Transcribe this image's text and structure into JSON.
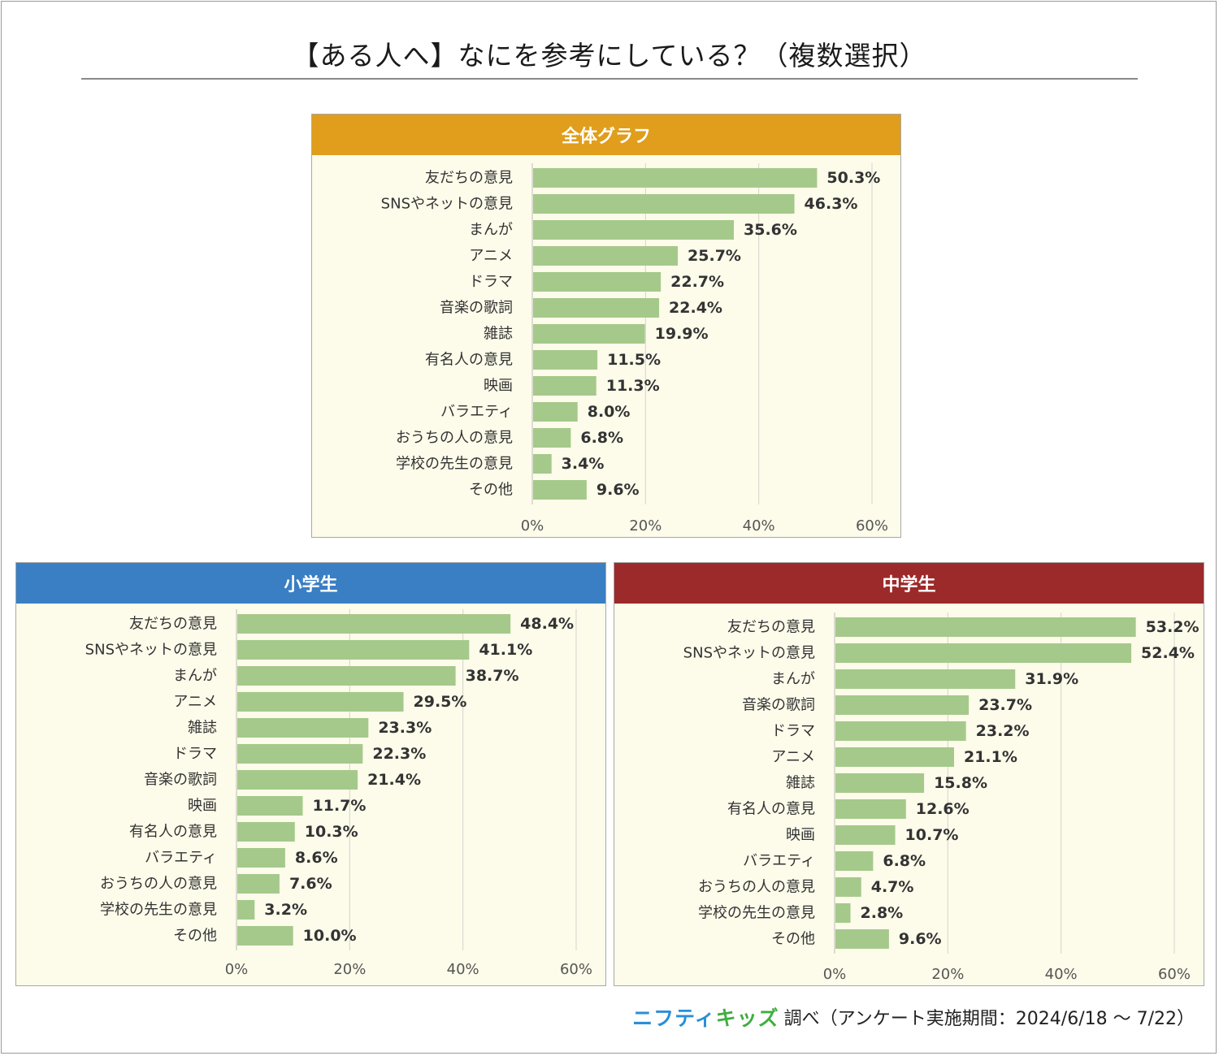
{
  "title": "【ある人へ】なにを参考にしている？（複数選択）",
  "footer": {
    "brand_part1": "ニフティ",
    "brand_part2": "キッズ",
    "note": "調べ（アンケート実施期間：2024/6/18 ～ 7/22）"
  },
  "colors": {
    "bar": "#a5c98b",
    "overall_header": "#e09e1c",
    "elementary_header": "#3a7fc4",
    "junior_header": "#9c2a2a",
    "plot_background": "#fdfbea"
  },
  "chart_data": [
    {
      "type": "bar",
      "orientation": "horizontal",
      "title": "全体グラフ",
      "categories": [
        "友だちの意見",
        "SNSやネットの意見",
        "まんが",
        "アニメ",
        "ドラマ",
        "音楽の歌詞",
        "雑誌",
        "有名人の意見",
        "映画",
        "バラエティ",
        "おうちの人の意見",
        "学校の先生の意見",
        "その他"
      ],
      "values": [
        50.3,
        46.3,
        35.6,
        25.7,
        22.7,
        22.4,
        19.9,
        11.5,
        11.3,
        8.0,
        6.8,
        3.4,
        9.6
      ],
      "value_labels": [
        "50.3%",
        "46.3%",
        "35.6%",
        "25.7%",
        "22.7%",
        "22.4%",
        "19.9%",
        "11.5%",
        "11.3%",
        "8.0%",
        "6.8%",
        "3.4%",
        "9.6%"
      ],
      "xlim": [
        0,
        60
      ],
      "ticks": [
        "0%",
        "20%",
        "40%",
        "60%"
      ],
      "grid": true
    },
    {
      "type": "bar",
      "orientation": "horizontal",
      "title": "小学生",
      "categories": [
        "友だちの意見",
        "SNSやネットの意見",
        "まんが",
        "アニメ",
        "雑誌",
        "ドラマ",
        "音楽の歌詞",
        "映画",
        "有名人の意見",
        "バラエティ",
        "おうちの人の意見",
        "学校の先生の意見",
        "その他"
      ],
      "values": [
        48.4,
        41.1,
        38.7,
        29.5,
        23.3,
        22.3,
        21.4,
        11.7,
        10.3,
        8.6,
        7.6,
        3.2,
        10.0
      ],
      "value_labels": [
        "48.4%",
        "41.1%",
        "38.7%",
        "29.5%",
        "23.3%",
        "22.3%",
        "21.4%",
        "11.7%",
        "10.3%",
        "8.6%",
        "7.6%",
        "3.2%",
        "10.0%"
      ],
      "xlim": [
        0,
        60
      ],
      "ticks": [
        "0%",
        "20%",
        "40%",
        "60%"
      ],
      "grid": true
    },
    {
      "type": "bar",
      "orientation": "horizontal",
      "title": "中学生",
      "categories": [
        "友だちの意見",
        "SNSやネットの意見",
        "まんが",
        "音楽の歌詞",
        "ドラマ",
        "アニメ",
        "雑誌",
        "有名人の意見",
        "映画",
        "バラエティ",
        "おうちの人の意見",
        "学校の先生の意見",
        "その他"
      ],
      "values": [
        53.2,
        52.4,
        31.9,
        23.7,
        23.2,
        21.1,
        15.8,
        12.6,
        10.7,
        6.8,
        4.7,
        2.8,
        9.6
      ],
      "value_labels": [
        "53.2%",
        "52.4%",
        "31.9%",
        "23.7%",
        "23.2%",
        "21.1%",
        "15.8%",
        "12.6%",
        "10.7%",
        "6.8%",
        "4.7%",
        "2.8%",
        "9.6%"
      ],
      "xlim": [
        0,
        60
      ],
      "ticks": [
        "0%",
        "20%",
        "40%",
        "60%"
      ],
      "grid": true
    }
  ]
}
